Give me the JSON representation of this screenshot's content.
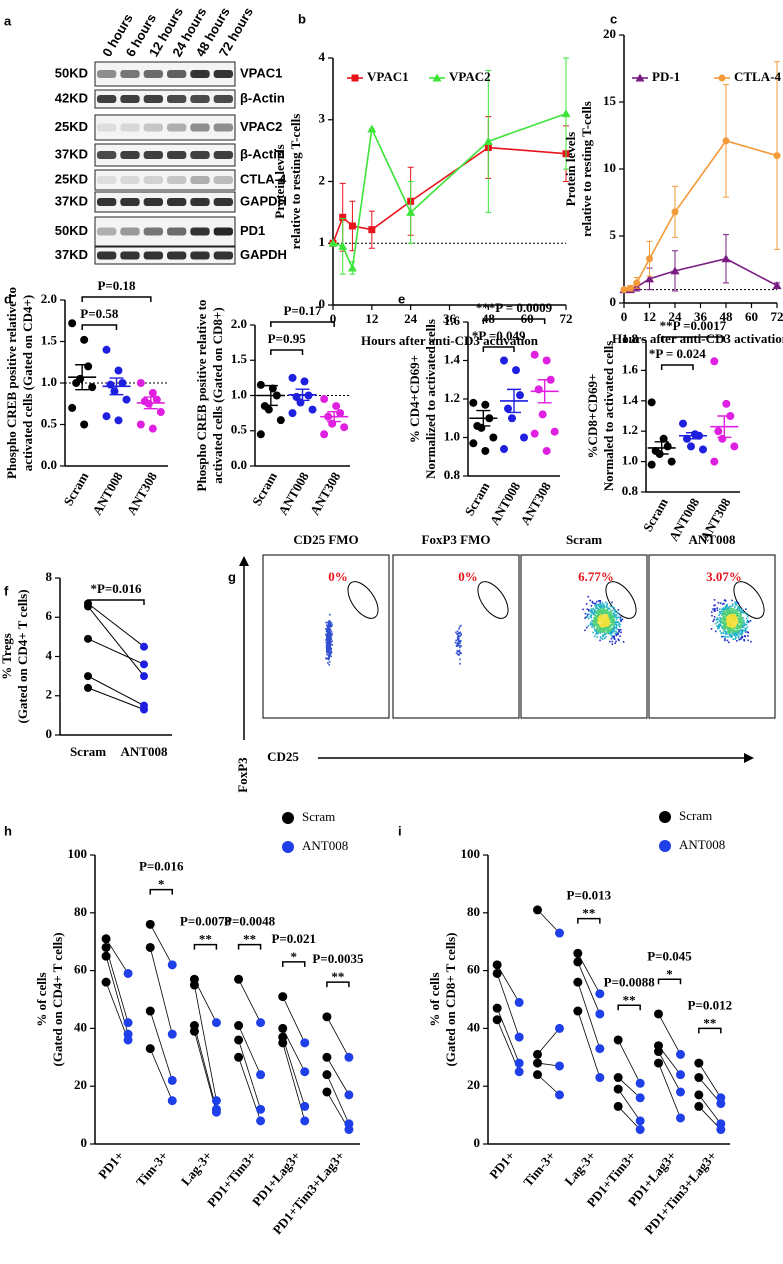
{
  "panel_labels": [
    "a",
    "b",
    "c",
    "d",
    "e",
    "f",
    "g",
    "h",
    "i"
  ],
  "blot": {
    "time_labels": [
      "0 hours",
      "6 hours",
      "12 hours",
      "24 hours",
      "48 hours",
      "72 hours"
    ],
    "rows": [
      {
        "kd": "50KD",
        "protein": "VPAC1"
      },
      {
        "kd": "42KD",
        "protein": "β-Actin"
      },
      {
        "kd": "25KD",
        "protein": "VPAC2"
      },
      {
        "kd": "37KD",
        "protein": "β-Actin"
      },
      {
        "kd": "25KD",
        "protein": "CTLA-4"
      },
      {
        "kd": "37KD",
        "protein": "GAPDH"
      },
      {
        "kd": "50KD",
        "protein": "PD1"
      },
      {
        "kd": "37KD",
        "protein": "GAPDH"
      }
    ]
  },
  "flow": {
    "panels": [
      {
        "title": "CD25 FMO",
        "percent": "0%"
      },
      {
        "title": "FoxP3 FMO",
        "percent": "0%"
      },
      {
        "title": "Scram",
        "percent": "6.77%"
      },
      {
        "title": "ANT008",
        "percent": "3.07%"
      }
    ],
    "ylabel": "FoxP3",
    "xlabel": "CD25"
  },
  "chart_data": [
    {
      "type": "line",
      "ylabel": [
        "Protein levels",
        "relative to resting T-cells"
      ],
      "xlabel": "Hours after anti-CD3 activation",
      "x": [
        0,
        3,
        6,
        12,
        24,
        48,
        72
      ],
      "xlim": [
        0,
        72
      ],
      "xticks": [
        0,
        12,
        24,
        36,
        48,
        60,
        72
      ],
      "ylim": [
        0,
        4
      ],
      "yticks": [
        0,
        1,
        2,
        3,
        4
      ],
      "reference_line": 1,
      "series": [
        {
          "name": "VPAC1",
          "color": "#e8141c",
          "marker": "square",
          "values": [
            1,
            1.42,
            1.28,
            1.22,
            1.68,
            2.55,
            2.45
          ],
          "errors": [
            0,
            0.55,
            0.4,
            0.3,
            0.55,
            0.5,
            0.45
          ]
        },
        {
          "name": "VPAC2",
          "color": "#3ee43a",
          "marker": "triangle",
          "values": [
            1,
            0.95,
            0.6,
            2.85,
            1.5,
            2.65,
            3.1
          ],
          "errors": [
            0,
            0.45,
            0.1,
            0,
            0.5,
            1.15,
            0.9
          ]
        }
      ]
    },
    {
      "type": "line",
      "ylabel": [
        "Protein levels",
        "relative to resting T-cells"
      ],
      "xlabel": "Hours after anti-CD3 activation",
      "x": [
        0,
        3,
        6,
        12,
        24,
        48,
        72
      ],
      "xlim": [
        0,
        72
      ],
      "xticks": [
        0,
        12,
        24,
        36,
        48,
        60,
        72
      ],
      "ylim": [
        0,
        20
      ],
      "yticks": [
        0,
        5,
        10,
        15,
        20
      ],
      "reference_line": 1,
      "series": [
        {
          "name": "PD-1",
          "color": "#7b1c84",
          "marker": "triangle",
          "values": [
            1,
            1,
            1.2,
            1.8,
            2.4,
            3.3,
            1.3
          ],
          "errors": [
            0,
            0.2,
            0.3,
            0.8,
            1.5,
            1.8,
            0.2
          ]
        },
        {
          "name": "CTLA-4",
          "color": "#f39a3a",
          "marker": "circle",
          "values": [
            1,
            1.1,
            1.5,
            3.3,
            6.8,
            12.1,
            11
          ],
          "errors": [
            0,
            0.2,
            0.4,
            1.3,
            1.9,
            4.2,
            7
          ]
        }
      ]
    },
    {
      "type": "dot",
      "ylabel": [
        "Phospho CREB positive relative to",
        "activated cells (Gated on CD4+)"
      ],
      "categories": [
        "Scram",
        "ANT008",
        "ANT308"
      ],
      "colors": [
        "#000000",
        "#1f1fe0",
        "#e020e0"
      ],
      "points": [
        [
          1.72,
          1.52,
          1.2,
          1.0,
          1.05,
          0.95,
          0.7,
          0.5
        ],
        [
          1.4,
          1.15,
          1.0,
          0.98,
          0.9,
          0.8,
          0.6,
          0.55
        ],
        [
          1.0,
          0.88,
          0.8,
          0.78,
          0.75,
          0.65,
          0.5,
          0.45
        ]
      ],
      "means": [
        1.07,
        0.96,
        0.76
      ],
      "sems": [
        0.15,
        0.1,
        0.07
      ],
      "ylim": [
        0,
        2
      ],
      "yticks": [
        {
          "value": 0,
          "label": "0.0"
        },
        0.5,
        {
          "value": 1,
          "label": "1.0"
        },
        1.5,
        {
          "value": 2,
          "label": "2.0"
        }
      ],
      "reference_line": 1,
      "comparison_labels": [
        "P=0.58",
        "P=0.18"
      ]
    },
    {
      "type": "dot",
      "ylabel": [
        "Phospho CREB positive relative to",
        "activated cells (Gated on CD8+)"
      ],
      "categories": [
        "Scram",
        "ANT008",
        "ANT308"
      ],
      "colors": [
        "#000000",
        "#1f1fe0",
        "#e020e0"
      ],
      "points": [
        [
          1.15,
          1.1,
          1.0,
          0.85,
          0.8,
          0.65,
          0.45
        ],
        [
          1.25,
          1.2,
          1.0,
          0.98,
          0.9,
          0.8,
          0.75
        ],
        [
          0.95,
          0.85,
          0.75,
          0.7,
          0.6,
          0.55,
          0.45
        ]
      ],
      "means": [
        1.0,
        1.01,
        0.7
      ],
      "sems": [
        0.14,
        0.08,
        0.07
      ],
      "ylim": [
        0,
        2
      ],
      "yticks": [
        {
          "value": 0,
          "label": "0.0"
        },
        0.5,
        {
          "value": 1,
          "label": "1.0"
        },
        1.5,
        {
          "value": 2,
          "label": "2.0"
        }
      ],
      "reference_line": 1,
      "comparison_labels": [
        "P=0.95",
        "P=0.17"
      ]
    },
    {
      "type": "dot",
      "ylabel": [
        "% CD4+CD69+",
        "Normalized to activated cells"
      ],
      "categories": [
        "Scram",
        "ANT008",
        "ANT308"
      ],
      "colors": [
        "#000000",
        "#1f1fe0",
        "#e020e0"
      ],
      "points": [
        [
          1.18,
          1.17,
          1.1,
          1.06,
          1.05,
          1.0,
          0.97,
          0.93
        ],
        [
          1.4,
          1.35,
          1.22,
          1.15,
          1.1,
          1.0,
          0.94
        ],
        [
          1.43,
          1.4,
          1.3,
          1.25,
          1.12,
          1.03,
          1.02,
          0.93
        ]
      ],
      "means": [
        1.1,
        1.19,
        1.24
      ],
      "sems": [
        0.04,
        0.06,
        0.06
      ],
      "ylim": [
        0.8,
        1.6
      ],
      "yticks": [
        0.8,
        {
          "value": 1,
          "label": "1.0"
        },
        1.2,
        1.4,
        1.6
      ],
      "comparison_labels": [
        "*P =0.049",
        "***P = 0.0009"
      ]
    },
    {
      "type": "dot",
      "ylabel": [
        "%CD8+CD69+",
        "Normaled to activated cells"
      ],
      "categories": [
        "Scram",
        "ANT008",
        "ANT308"
      ],
      "colors": [
        "#000000",
        "#1f1fe0",
        "#e020e0"
      ],
      "points": [
        [
          1.39,
          1.15,
          1.1,
          1.07,
          1.05,
          1.0,
          0.98
        ],
        [
          1.25,
          1.18,
          1.17,
          1.15,
          1.1,
          1.08
        ],
        [
          1.66,
          1.38,
          1.3,
          1.2,
          1.15,
          1.1,
          1.0
        ]
      ],
      "means": [
        1.09,
        1.17,
        1.23
      ],
      "sems": [
        0.04,
        0.02,
        0.07
      ],
      "ylim": [
        0.8,
        1.8
      ],
      "yticks": [
        0.8,
        {
          "value": 1,
          "label": "1.0"
        },
        1.2,
        1.4,
        1.6,
        1.8
      ],
      "comparison_labels": [
        "*P = 0.024",
        "**P =0.0017"
      ]
    },
    {
      "type": "paired",
      "ylabel": [
        "% Tregs",
        "(Gated on CD4+ T cells)"
      ],
      "categories": [
        "Scram",
        "ANT008"
      ],
      "colors": [
        "#000000",
        "#1f1fe0"
      ],
      "points": [
        [
          6.7,
          6.55,
          4.9,
          3.0,
          2.4
        ],
        [
          4.5,
          3.0,
          3.6,
          1.5,
          1.3
        ]
      ],
      "ylim": [
        0,
        8
      ],
      "yticks": [
        0,
        2,
        4,
        6,
        8
      ],
      "comparison_labels": [
        "*P=0.016"
      ]
    },
    {
      "type": "paired_group",
      "ylabel": [
        "% of cells",
        "(Gated on CD4+ T cells)"
      ],
      "categories": [
        "PD1+",
        "Tim-3+",
        "Lag-3+",
        "PD1+Tim3+",
        "PD1+Lag3+",
        "PD1+Tim3+Lag3+"
      ],
      "series": [
        {
          "name": "Scram",
          "color": "#000000",
          "values": [
            [
              71,
              68,
              65,
              56
            ],
            [
              76,
              68,
              46,
              33
            ],
            [
              57,
              55,
              41,
              39
            ],
            [
              57,
              41,
              36,
              30
            ],
            [
              51,
              40,
              37,
              35
            ],
            [
              44,
              30,
              24,
              18
            ]
          ]
        },
        {
          "name": "ANT008",
          "color": "#1f3fe8",
          "values": [
            [
              59,
              42,
              38,
              36
            ],
            [
              62,
              38,
              22,
              15
            ],
            [
              42,
              15,
              12,
              11
            ],
            [
              42,
              24,
              12,
              8
            ],
            [
              35,
              25,
              13,
              8
            ],
            [
              30,
              17,
              7,
              5
            ]
          ]
        }
      ],
      "ylim": [
        0,
        100
      ],
      "yticks": [
        0,
        20,
        40,
        60,
        80,
        100
      ],
      "significance": [
        null,
        {
          "p": "P=0.016",
          "stars": "*"
        },
        {
          "p": "P=0.0078",
          "stars": "**"
        },
        {
          "p": "P=0.0048",
          "stars": "**"
        },
        {
          "p": "P=0.021",
          "stars": "*"
        },
        {
          "p": "P=0.0035",
          "stars": "**"
        }
      ]
    },
    {
      "type": "paired_group",
      "ylabel": [
        "% of cells",
        "(Gated on CD8+ T cells)"
      ],
      "categories": [
        "PD1+",
        "Tim-3+",
        "Lag-3+",
        "PD1+Tim3+",
        "PD1+Lag3+",
        "PD1+Tim3+Lag3+"
      ],
      "series": [
        {
          "name": "Scram",
          "color": "#000000",
          "values": [
            [
              62,
              59,
              47,
              43
            ],
            [
              81,
              31,
              28,
              24
            ],
            [
              66,
              63,
              56,
              46
            ],
            [
              36,
              23,
              19,
              13
            ],
            [
              45,
              34,
              32,
              28
            ],
            [
              28,
              23,
              17,
              13
            ]
          ]
        },
        {
          "name": "ANT008",
          "color": "#1f3fe8",
          "values": [
            [
              49,
              37,
              28,
              25
            ],
            [
              73,
              40,
              27,
              17
            ],
            [
              52,
              45,
              33,
              23
            ],
            [
              21,
              16,
              8,
              5
            ],
            [
              31,
              24,
              18,
              9
            ],
            [
              16,
              14,
              7,
              5
            ]
          ]
        }
      ],
      "ylim": [
        0,
        100
      ],
      "yticks": [
        0,
        20,
        40,
        60,
        80,
        100
      ],
      "significance": [
        null,
        null,
        {
          "p": "P=0.013",
          "stars": "**"
        },
        {
          "p": "P=0.0088",
          "stars": "**"
        },
        {
          "p": "P=0.045",
          "stars": "*"
        },
        {
          "p": "P=0.012",
          "stars": "**"
        }
      ]
    }
  ]
}
